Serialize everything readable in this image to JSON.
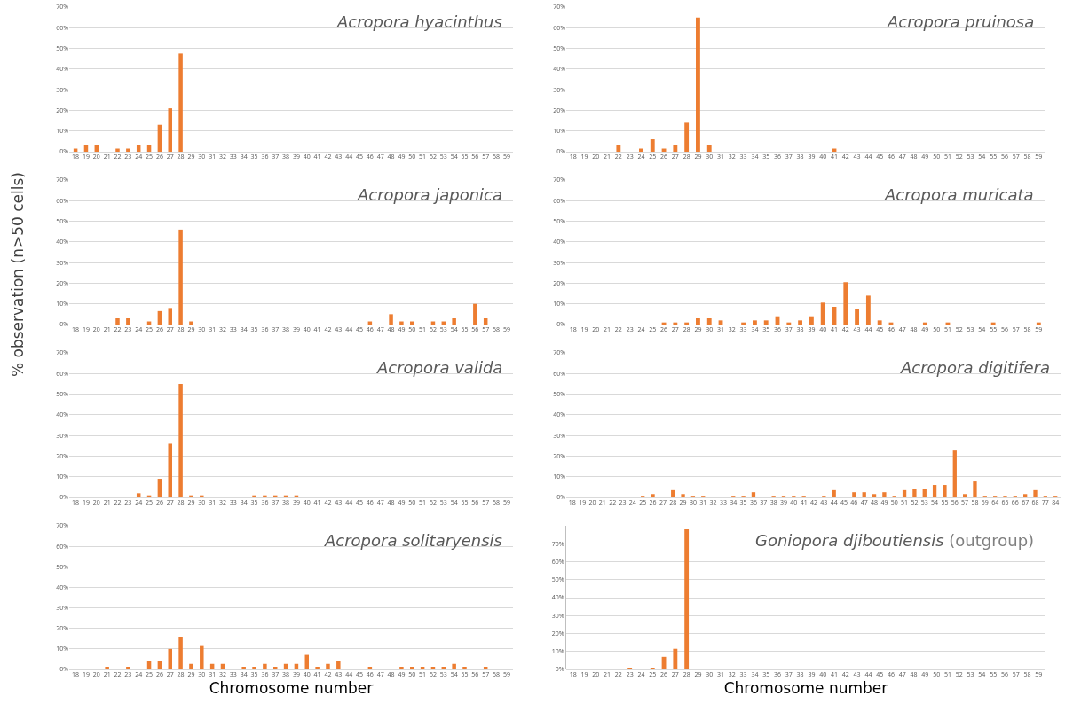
{
  "chart_data": [
    {
      "type": "bar",
      "title": "Acropora hyacinthus",
      "color": "#ed7d31",
      "grid": "y",
      "ylim": [
        0,
        70
      ],
      "yticks": [
        {
          "value": 0,
          "label": "0%"
        },
        {
          "value": 10,
          "label": "10%"
        },
        {
          "value": 20,
          "label": "20%"
        },
        {
          "value": 30,
          "label": "30%"
        },
        {
          "value": 40,
          "label": "40%"
        },
        {
          "value": 50,
          "label": "50%"
        },
        {
          "value": 60,
          "label": "60%"
        },
        {
          "value": 70,
          "label": "70%"
        }
      ],
      "categories": [
        "18",
        "19",
        "20",
        "21",
        "22",
        "23",
        "24",
        "25",
        "26",
        "27",
        "28",
        "29",
        "30",
        "31",
        "32",
        "33",
        "34",
        "35",
        "36",
        "37",
        "38",
        "39",
        "40",
        "41",
        "42",
        "43",
        "44",
        "45",
        "46",
        "47",
        "48",
        "49",
        "50",
        "51",
        "52",
        "53",
        "54",
        "55",
        "56",
        "57",
        "58",
        "59"
      ],
      "values": [
        1.5,
        3,
        3,
        0,
        1.5,
        1.5,
        3,
        3,
        13,
        21,
        47.5,
        0,
        0,
        0,
        0,
        0,
        0,
        0,
        0,
        0,
        0,
        0,
        0,
        0,
        0,
        0,
        0,
        0,
        0,
        0,
        0,
        0,
        0,
        0,
        0,
        0,
        0,
        0,
        0,
        0,
        0,
        0
      ]
    },
    {
      "type": "bar",
      "title": "Acropora pruinosa",
      "color": "#ed7d31",
      "grid": "y",
      "ylim": [
        0,
        70
      ],
      "yticks": [
        {
          "value": 0,
          "label": "0%"
        },
        {
          "value": 10,
          "label": "10%"
        },
        {
          "value": 20,
          "label": "20%"
        },
        {
          "value": 30,
          "label": "30%"
        },
        {
          "value": 40,
          "label": "40%"
        },
        {
          "value": 50,
          "label": "50%"
        },
        {
          "value": 60,
          "label": "60%"
        },
        {
          "value": 70,
          "label": "70%"
        }
      ],
      "categories": [
        "18",
        "19",
        "20",
        "21",
        "22",
        "23",
        "24",
        "25",
        "26",
        "27",
        "28",
        "29",
        "30",
        "31",
        "32",
        "33",
        "34",
        "35",
        "36",
        "37",
        "38",
        "39",
        "40",
        "41",
        "42",
        "43",
        "44",
        "45",
        "46",
        "47",
        "48",
        "49",
        "50",
        "51",
        "52",
        "53",
        "54",
        "55",
        "56",
        "57",
        "58",
        "59"
      ],
      "values": [
        0,
        0,
        0,
        0,
        3,
        0,
        1.5,
        6,
        1.5,
        3,
        14,
        65,
        3,
        0,
        0,
        0,
        0,
        0,
        0,
        0,
        0,
        0,
        0,
        1.5,
        0,
        0,
        0,
        0,
        0,
        0,
        0,
        0,
        0,
        0,
        0,
        0,
        0,
        0,
        0,
        0,
        0,
        0
      ]
    },
    {
      "type": "bar",
      "title": "Acropora japonica",
      "ylabel": "% observation (n>50 cells)",
      "color": "#ed7d31",
      "grid": "y",
      "ylim": [
        0,
        70
      ],
      "yticks": [
        {
          "value": 0,
          "label": "0%"
        },
        {
          "value": 10,
          "label": "10%"
        },
        {
          "value": 20,
          "label": "20%"
        },
        {
          "value": 30,
          "label": "30%"
        },
        {
          "value": 40,
          "label": "40%"
        },
        {
          "value": 50,
          "label": "50%"
        },
        {
          "value": 60,
          "label": "60%"
        },
        {
          "value": 70,
          "label": "70%"
        }
      ],
      "categories": [
        "18",
        "19",
        "20",
        "21",
        "22",
        "23",
        "24",
        "25",
        "26",
        "27",
        "28",
        "29",
        "30",
        "31",
        "32",
        "33",
        "34",
        "35",
        "36",
        "37",
        "38",
        "39",
        "40",
        "41",
        "42",
        "43",
        "44",
        "45",
        "46",
        "47",
        "48",
        "49",
        "50",
        "51",
        "52",
        "53",
        "54",
        "55",
        "56",
        "57",
        "58",
        "59"
      ],
      "values": [
        0,
        0,
        0,
        0,
        3,
        3,
        0,
        1.5,
        6.5,
        8,
        46,
        1.5,
        0,
        0,
        0,
        0,
        0,
        0,
        0,
        0,
        0,
        0,
        0,
        0,
        0,
        0,
        0,
        0,
        1.5,
        0,
        5,
        1.5,
        1.5,
        0,
        1.5,
        1.5,
        3,
        0,
        10,
        3,
        0,
        0
      ]
    },
    {
      "type": "bar",
      "title": "Acropora muricata",
      "color": "#ed7d31",
      "grid": "y",
      "ylim": [
        0,
        70
      ],
      "yticks": [
        {
          "value": 0,
          "label": "0%"
        },
        {
          "value": 10,
          "label": "10%"
        },
        {
          "value": 20,
          "label": "20%"
        },
        {
          "value": 30,
          "label": "30%"
        },
        {
          "value": 40,
          "label": "40%"
        },
        {
          "value": 50,
          "label": "50%"
        },
        {
          "value": 60,
          "label": "60%"
        },
        {
          "value": 70,
          "label": "70%"
        }
      ],
      "categories": [
        "18",
        "19",
        "20",
        "21",
        "22",
        "23",
        "24",
        "25",
        "26",
        "27",
        "28",
        "29",
        "30",
        "31",
        "32",
        "33",
        "34",
        "35",
        "36",
        "37",
        "38",
        "39",
        "40",
        "41",
        "42",
        "43",
        "44",
        "45",
        "46",
        "47",
        "48",
        "49",
        "50",
        "51",
        "52",
        "53",
        "54",
        "55",
        "56",
        "57",
        "58",
        "59"
      ],
      "values": [
        0,
        0,
        0,
        0,
        0,
        0,
        0,
        0,
        1,
        1,
        1,
        3,
        3,
        2,
        0,
        1,
        2,
        2,
        4,
        1,
        2,
        4,
        10.6,
        8.6,
        20.5,
        7.5,
        14,
        2,
        1,
        0,
        0,
        1,
        0,
        1,
        0,
        0,
        0,
        1,
        0,
        0,
        0,
        1
      ]
    },
    {
      "type": "bar",
      "title": "Acropora valida",
      "color": "#ed7d31",
      "grid": "y",
      "ylim": [
        0,
        70
      ],
      "yticks": [
        {
          "value": 0,
          "label": "0%"
        },
        {
          "value": 10,
          "label": "10%"
        },
        {
          "value": 20,
          "label": "20%"
        },
        {
          "value": 30,
          "label": "30%"
        },
        {
          "value": 40,
          "label": "40%"
        },
        {
          "value": 50,
          "label": "50%"
        },
        {
          "value": 60,
          "label": "60%"
        },
        {
          "value": 70,
          "label": "70%"
        }
      ],
      "categories": [
        "18",
        "19",
        "20",
        "21",
        "22",
        "23",
        "24",
        "25",
        "26",
        "27",
        "28",
        "29",
        "30",
        "31",
        "32",
        "33",
        "34",
        "35",
        "36",
        "37",
        "38",
        "39",
        "40",
        "41",
        "42",
        "43",
        "44",
        "45",
        "46",
        "47",
        "48",
        "49",
        "50",
        "51",
        "52",
        "53",
        "54",
        "55",
        "56",
        "57",
        "58",
        "59"
      ],
      "values": [
        0,
        0,
        0,
        0,
        0,
        0,
        2,
        1,
        9,
        26,
        55,
        1,
        1,
        0,
        0,
        0,
        0,
        1,
        1,
        1,
        1,
        1,
        0,
        0,
        0,
        0,
        0,
        0,
        0,
        0,
        0,
        0,
        0,
        0,
        0,
        0,
        0,
        0,
        0,
        0,
        0,
        0
      ]
    },
    {
      "type": "bar",
      "title": "Acropora digitifera",
      "color": "#ed7d31",
      "grid": "y",
      "ylim": [
        0,
        70
      ],
      "yticks": [
        {
          "value": 0,
          "label": "0%"
        },
        {
          "value": 10,
          "label": "10%"
        },
        {
          "value": 20,
          "label": "20%"
        },
        {
          "value": 30,
          "label": "30%"
        },
        {
          "value": 40,
          "label": "40%"
        },
        {
          "value": 50,
          "label": "50%"
        },
        {
          "value": 60,
          "label": "60%"
        },
        {
          "value": 70,
          "label": "70%"
        }
      ],
      "categories": [
        "18",
        "19",
        "20",
        "21",
        "22",
        "23",
        "24",
        "25",
        "26",
        "27",
        "28",
        "29",
        "30",
        "31",
        "32",
        "33",
        "34",
        "35",
        "36",
        "37",
        "38",
        "39",
        "40",
        "41",
        "42",
        "43",
        "44",
        "45",
        "46",
        "47",
        "48",
        "49",
        "50",
        "51",
        "52",
        "53",
        "54",
        "55",
        "56",
        "57",
        "58",
        "59",
        "64",
        "65",
        "66",
        "67",
        "68",
        "77",
        "84"
      ],
      "values": [
        0,
        0,
        0,
        0,
        0,
        0,
        0,
        0.8,
        1.6,
        0,
        3.5,
        1.6,
        0.8,
        0.8,
        0,
        0,
        0.8,
        0.8,
        2.5,
        0,
        0.8,
        0.8,
        0.8,
        0.8,
        0,
        0.8,
        3.5,
        0,
        2.5,
        2.5,
        1.6,
        2.5,
        0.8,
        3.5,
        4.3,
        4.3,
        6,
        6,
        22.7,
        1.6,
        7.7,
        0.8,
        0.8,
        0.8,
        0.8,
        1.6,
        3.5,
        0.8,
        0.8
      ]
    },
    {
      "type": "bar",
      "title": "Acropora solitaryensis",
      "xlabel": "Chromosome number",
      "color": "#ed7d31",
      "grid": "y",
      "ylim": [
        0,
        70
      ],
      "yticks": [
        {
          "value": 0,
          "label": "0%"
        },
        {
          "value": 10,
          "label": "10%"
        },
        {
          "value": 20,
          "label": "20%"
        },
        {
          "value": 30,
          "label": "30%"
        },
        {
          "value": 40,
          "label": "40%"
        },
        {
          "value": 50,
          "label": "50%"
        },
        {
          "value": 60,
          "label": "60%"
        },
        {
          "value": 70,
          "label": "70%"
        }
      ],
      "categories": [
        "18",
        "19",
        "20",
        "21",
        "22",
        "23",
        "24",
        "25",
        "26",
        "27",
        "28",
        "29",
        "30",
        "31",
        "32",
        "33",
        "34",
        "35",
        "36",
        "37",
        "38",
        "39",
        "40",
        "41",
        "42",
        "43",
        "44",
        "45",
        "46",
        "47",
        "48",
        "49",
        "50",
        "51",
        "52",
        "53",
        "54",
        "55",
        "56",
        "57",
        "58",
        "59"
      ],
      "values": [
        0,
        0,
        0,
        1.3,
        0,
        1.3,
        0,
        4.3,
        4.3,
        10,
        16,
        2.7,
        11.4,
        2.7,
        2.7,
        0,
        1.3,
        1.3,
        2.7,
        1.3,
        2.7,
        2.7,
        7.1,
        1.3,
        2.7,
        4.3,
        0,
        0,
        1.3,
        0,
        0,
        1.3,
        1.3,
        1.3,
        1.3,
        1.3,
        2.7,
        1.3,
        0,
        1.3,
        0,
        0
      ]
    },
    {
      "type": "bar",
      "title": "Goniopora djiboutiensis",
      "subtitle": "(outgroup)",
      "xlabel": "Chromosome number",
      "color": "#ed7d31",
      "grid": "y",
      "ylim": [
        0,
        80
      ],
      "yticks": [
        {
          "value": 0,
          "label": "0%"
        },
        {
          "value": 10,
          "label": "10%"
        },
        {
          "value": 20,
          "label": "20%"
        },
        {
          "value": 30,
          "label": "30%"
        },
        {
          "value": 40,
          "label": "40%"
        },
        {
          "value": 50,
          "label": "50%"
        },
        {
          "value": 60,
          "label": "60%"
        },
        {
          "value": 70,
          "label": "70%"
        }
      ],
      "categories": [
        "18",
        "19",
        "20",
        "21",
        "22",
        "23",
        "24",
        "25",
        "26",
        "27",
        "28",
        "29",
        "30",
        "31",
        "32",
        "33",
        "34",
        "35",
        "36",
        "37",
        "38",
        "39",
        "40",
        "41",
        "42",
        "43",
        "44",
        "45",
        "46",
        "47",
        "48",
        "49",
        "50",
        "51",
        "52",
        "53",
        "54",
        "55",
        "56",
        "57",
        "58",
        "59"
      ],
      "values": [
        0,
        0,
        0,
        0,
        0,
        1,
        0,
        1,
        7,
        11.5,
        78,
        0,
        0,
        0,
        0,
        0,
        0,
        0,
        0,
        0,
        0,
        0,
        0,
        0,
        0,
        0,
        0,
        0,
        0,
        0,
        0,
        0,
        0,
        0,
        0,
        0,
        0,
        0,
        0,
        0,
        0,
        0
      ]
    }
  ]
}
